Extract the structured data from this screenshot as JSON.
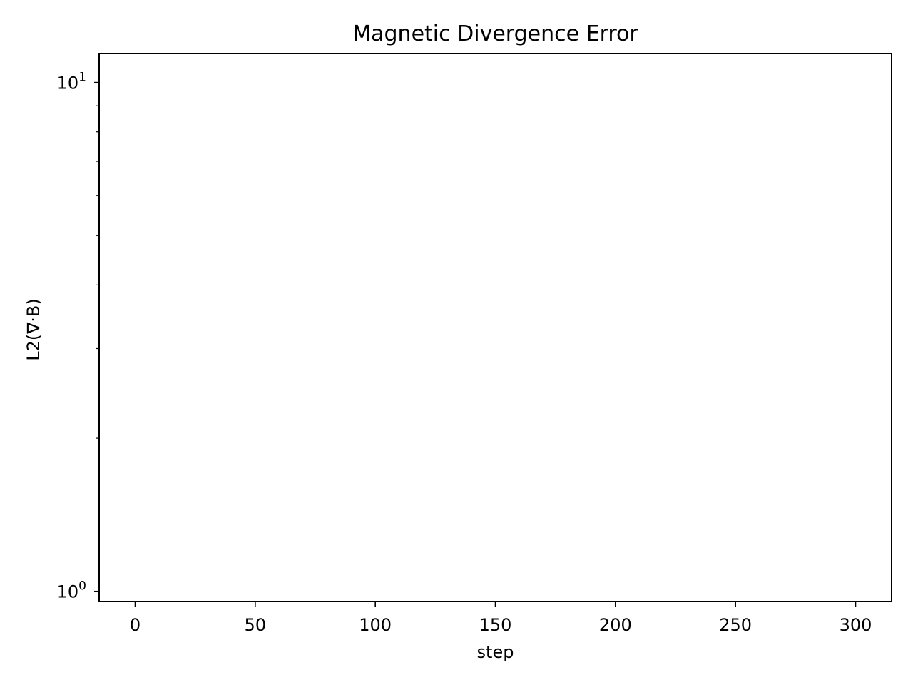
{
  "chart_data": {
    "type": "line",
    "title": "Magnetic Divergence Error",
    "xlabel": "step",
    "ylabel": "L2(∇·B)",
    "xlim": [
      -15,
      315
    ],
    "ylim": [
      0.955,
      11.4
    ],
    "yscale": "log",
    "grid": false,
    "legend": "none",
    "series": [],
    "x_ticks": [
      {
        "value": 0,
        "label": "0"
      },
      {
        "value": 50,
        "label": "50"
      },
      {
        "value": 100,
        "label": "100"
      },
      {
        "value": 150,
        "label": "150"
      },
      {
        "value": 200,
        "label": "200"
      },
      {
        "value": 250,
        "label": "250"
      },
      {
        "value": 300,
        "label": "300"
      }
    ],
    "y_major_ticks": [
      {
        "value": 1,
        "base": "10",
        "exp": "0"
      },
      {
        "value": 10,
        "base": "10",
        "exp": "1"
      }
    ],
    "y_minor_ticks": [
      2,
      3,
      4,
      5,
      6,
      7,
      8,
      9
    ],
    "colors": {
      "axes": "#000000",
      "background": "#ffffff"
    }
  }
}
